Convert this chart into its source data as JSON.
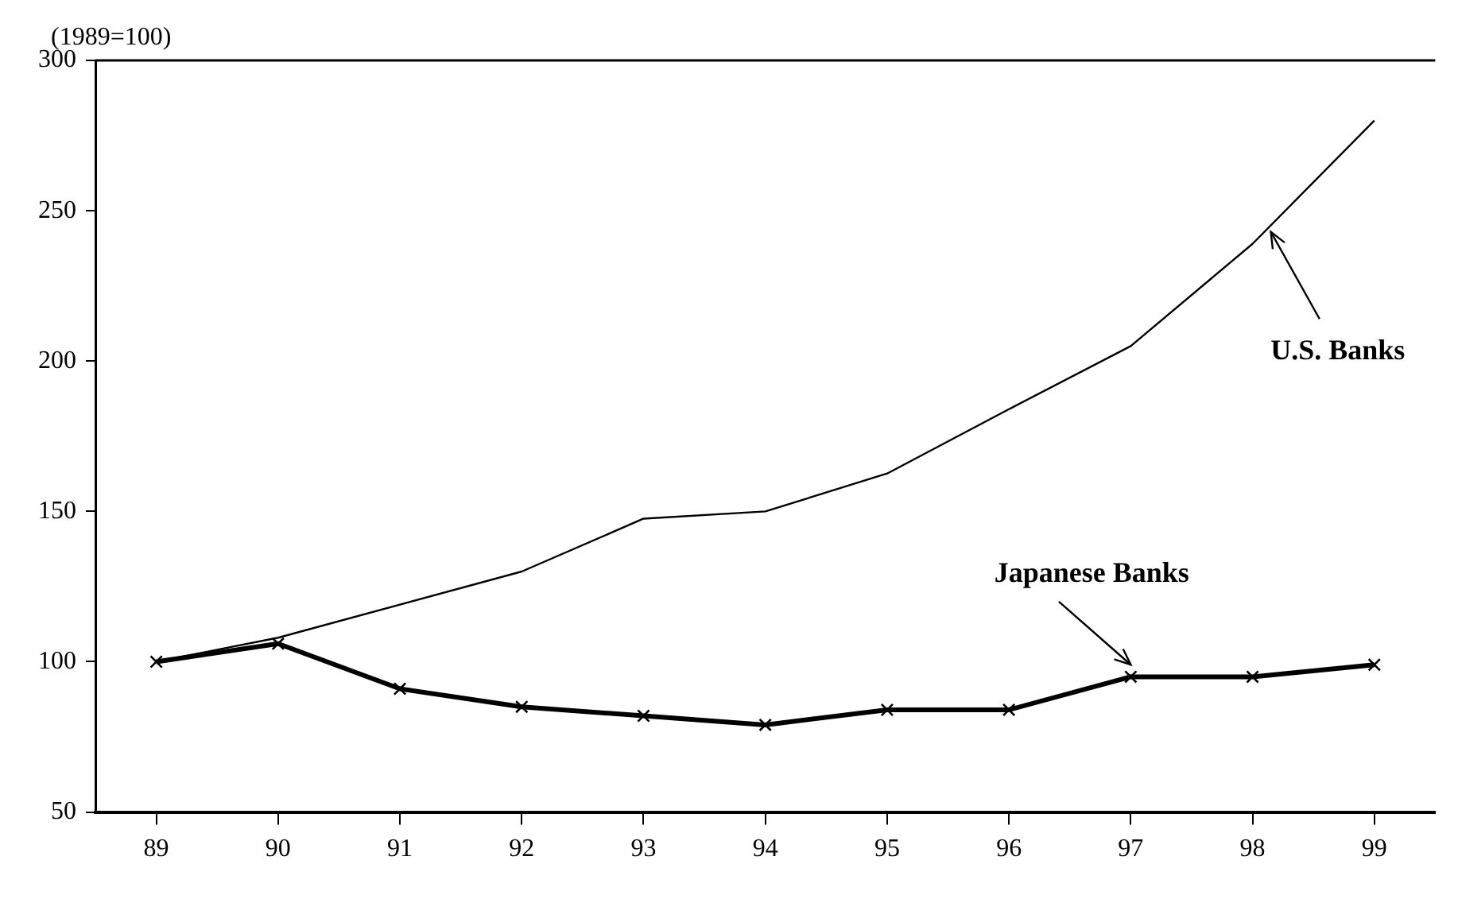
{
  "chart_data": {
    "type": "line",
    "ylabel": "(1989=100)",
    "categories": [
      "89",
      "90",
      "91",
      "92",
      "93",
      "94",
      "95",
      "96",
      "97",
      "98",
      "99"
    ],
    "series": [
      {
        "name": "U.S. Banks",
        "color": "#000000",
        "marker": "none",
        "values": [
          100,
          108,
          119,
          130,
          147.6,
          150,
          162.6,
          184,
          205,
          239,
          280
        ]
      },
      {
        "name": "Japanese Banks",
        "color": "#000000",
        "marker": "cross",
        "values": [
          100,
          106,
          91,
          85,
          82,
          79,
          84,
          84,
          95,
          95,
          99
        ]
      }
    ],
    "ylim": [
      50,
      300
    ],
    "yticks": [
      50,
      100,
      150,
      200,
      250,
      300
    ],
    "grid": false,
    "legend": false,
    "line_style": "solid"
  }
}
